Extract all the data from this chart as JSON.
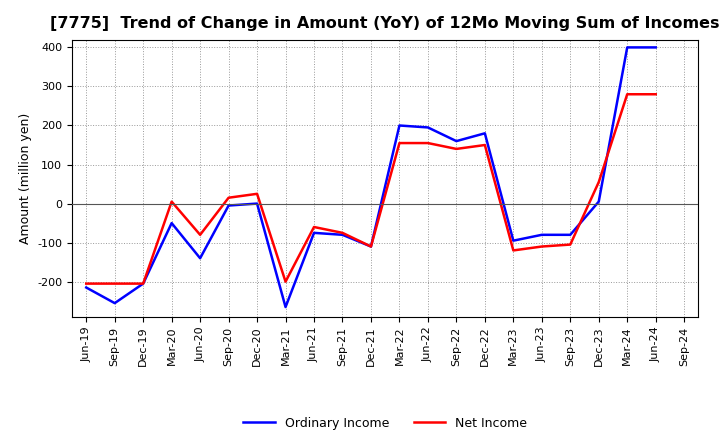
{
  "title": "[7775]  Trend of Change in Amount (YoY) of 12Mo Moving Sum of Incomes",
  "ylabel": "Amount (million yen)",
  "x_labels": [
    "Jun-19",
    "Sep-19",
    "Dec-19",
    "Mar-20",
    "Jun-20",
    "Sep-20",
    "Dec-20",
    "Mar-21",
    "Jun-21",
    "Sep-21",
    "Dec-21",
    "Mar-22",
    "Jun-22",
    "Sep-22",
    "Dec-22",
    "Mar-23",
    "Jun-23",
    "Sep-23",
    "Dec-23",
    "Mar-24",
    "Jun-24",
    "Sep-24"
  ],
  "ordinary_income": [
    -215,
    -255,
    -205,
    -50,
    -140,
    -5,
    0,
    -265,
    -75,
    -80,
    -110,
    200,
    195,
    160,
    180,
    -95,
    -80,
    -80,
    5,
    400,
    400,
    null
  ],
  "net_income": [
    -205,
    -205,
    -205,
    5,
    -80,
    15,
    25,
    -200,
    -60,
    -75,
    -110,
    155,
    155,
    140,
    150,
    -120,
    -110,
    -105,
    55,
    280,
    280,
    null
  ],
  "ylim": [
    -290,
    420
  ],
  "yticks": [
    -200,
    -100,
    0,
    100,
    200,
    300,
    400
  ],
  "ordinary_color": "#0000ff",
  "net_color": "#ff0000",
  "background_color": "#ffffff",
  "grid_color": "#999999",
  "title_fontsize": 11.5,
  "label_fontsize": 9,
  "tick_fontsize": 8,
  "legend_fontsize": 9,
  "line_width": 1.8
}
